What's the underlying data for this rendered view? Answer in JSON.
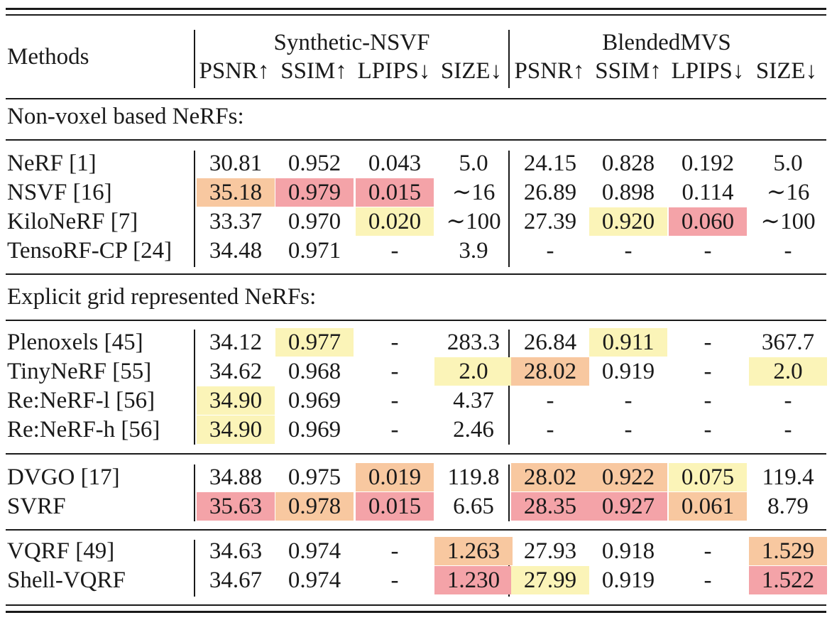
{
  "header": {
    "methods": "Methods",
    "groups": [
      "Synthetic-NSVF",
      "BlendedMVS"
    ],
    "metrics": [
      "PSNR↑",
      "SSIM↑",
      "LPIPS↓",
      "SIZE↓",
      "PSNR↑",
      "SSIM↑",
      "LPIPS↓",
      "SIZE↓"
    ]
  },
  "sections": {
    "non_voxel": "Non-voxel based NeRFs:",
    "explicit": "Explicit grid represented NeRFs:"
  },
  "highlight_colors": {
    "red": "#f4a3a8",
    "orange": "#f8c8a0",
    "yellow": "#fbf4b8"
  },
  "rows": [
    {
      "method": "NeRF [1]",
      "cells": [
        "30.81",
        "0.952",
        "0.043",
        "5.0",
        "24.15",
        "0.828",
        "0.192",
        "5.0"
      ],
      "hl": [
        "",
        "",
        "",
        "",
        "",
        "",
        "",
        ""
      ]
    },
    {
      "method": "NSVF [16]",
      "cells": [
        "35.18",
        "0.979",
        "0.015",
        "∼16",
        "26.89",
        "0.898",
        "0.114",
        "∼16"
      ],
      "hl": [
        "orange",
        "red",
        "red",
        "",
        "",
        "",
        "",
        ""
      ]
    },
    {
      "method": "KiloNeRF [7]",
      "cells": [
        "33.37",
        "0.970",
        "0.020",
        "∼100",
        "27.39",
        "0.920",
        "0.060",
        "∼100"
      ],
      "hl": [
        "",
        "",
        "yellow",
        "",
        "",
        "yellow",
        "red",
        ""
      ]
    },
    {
      "method": "TensoRF-CP [24]",
      "cells": [
        "34.48",
        "0.971",
        "-",
        "3.9",
        "-",
        "-",
        "-",
        "-"
      ],
      "hl": [
        "",
        "",
        "",
        "",
        "",
        "",
        "",
        ""
      ]
    },
    {
      "method": "Plenoxels [45]",
      "cells": [
        "34.12",
        "0.977",
        "-",
        "283.3",
        "26.84",
        "0.911",
        "-",
        "367.7"
      ],
      "hl": [
        "",
        "yellow",
        "",
        "",
        "",
        "yellow",
        "",
        ""
      ]
    },
    {
      "method": "TinyNeRF [55]",
      "cells": [
        "34.62",
        "0.968",
        "-",
        "2.0",
        "28.02",
        "0.919",
        "-",
        "2.0"
      ],
      "hl": [
        "",
        "",
        "",
        "yellow",
        "orange",
        "",
        "",
        "yellow"
      ]
    },
    {
      "method": "Re:NeRF-l [56]",
      "cells": [
        "34.90",
        "0.969",
        "-",
        "4.37",
        "-",
        "-",
        "-",
        "-"
      ],
      "hl": [
        "yellow",
        "",
        "",
        "",
        "",
        "",
        "",
        ""
      ]
    },
    {
      "method": "Re:NeRF-h [56]",
      "cells": [
        "34.90",
        "0.969",
        "-",
        "2.46",
        "-",
        "-",
        "-",
        "-"
      ],
      "hl": [
        "yellow",
        "",
        "",
        "",
        "",
        "",
        "",
        ""
      ]
    },
    {
      "method": "DVGO [17]",
      "cells": [
        "34.88",
        "0.975",
        "0.019",
        "119.8",
        "28.02",
        "0.922",
        "0.075",
        "119.4"
      ],
      "hl": [
        "",
        "",
        "orange",
        "",
        "orange",
        "orange",
        "yellow",
        ""
      ]
    },
    {
      "method": "SVRF",
      "cells": [
        "35.63",
        "0.978",
        "0.015",
        "6.65",
        "28.35",
        "0.927",
        "0.061",
        "8.79"
      ],
      "hl": [
        "red",
        "orange",
        "red",
        "",
        "red",
        "red",
        "orange",
        ""
      ]
    },
    {
      "method": "VQRF [49]",
      "cells": [
        "34.63",
        "0.974",
        "-",
        "1.263",
        "27.93",
        "0.918",
        "-",
        "1.529"
      ],
      "hl": [
        "",
        "",
        "",
        "orange",
        "",
        "",
        "",
        "orange"
      ]
    },
    {
      "method": "Shell-VQRF",
      "cells": [
        "34.67",
        "0.974",
        "-",
        "1.230",
        "27.99",
        "0.919",
        "-",
        "1.522"
      ],
      "hl": [
        "",
        "",
        "",
        "red",
        "yellow",
        "",
        "",
        "red"
      ]
    }
  ]
}
